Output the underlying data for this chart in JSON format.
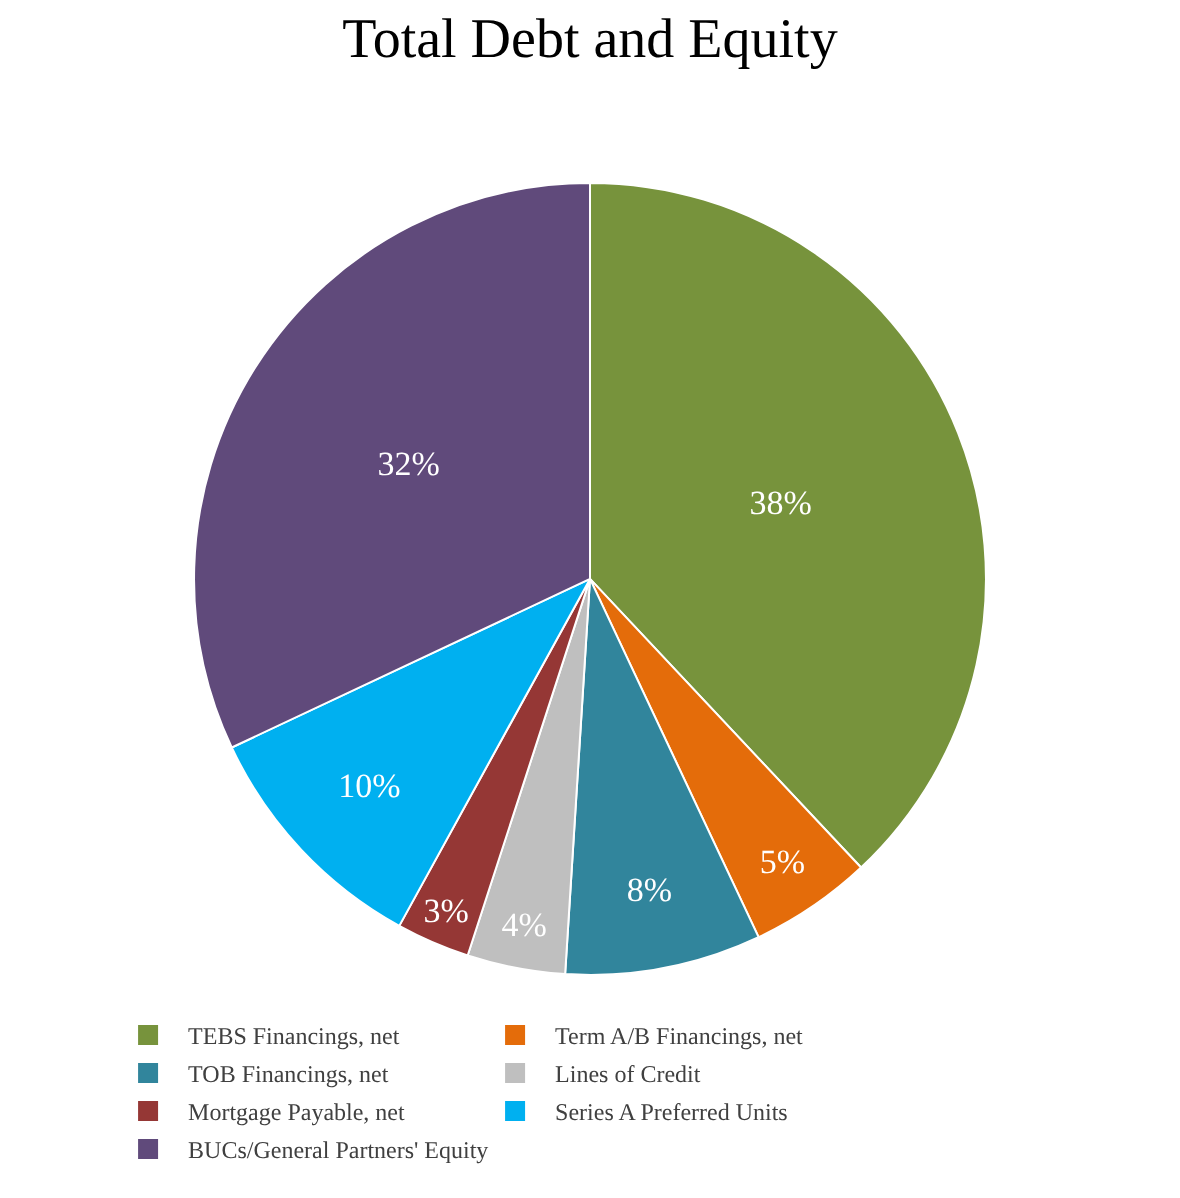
{
  "chart_data": {
    "type": "pie",
    "title": "Total Debt and Equity",
    "categories": [
      "TEBS Financings, net",
      "Term A/B Financings, net",
      "TOB Financings, net",
      "Lines of Credit",
      "Mortgage Payable, net",
      "Series A Preferred Units",
      "BUCs/General Partners' Equity"
    ],
    "values": [
      38,
      5,
      8,
      4,
      3,
      10,
      32
    ],
    "value_labels": [
      "38%",
      "5%",
      "8%",
      "4%",
      "3%",
      "10%",
      "32%"
    ],
    "colors": [
      "#77933c",
      "#e46c0a",
      "#31859c",
      "#bfbfbf",
      "#953735",
      "#00b0f0",
      "#604a7b"
    ],
    "legend": "bottom"
  }
}
